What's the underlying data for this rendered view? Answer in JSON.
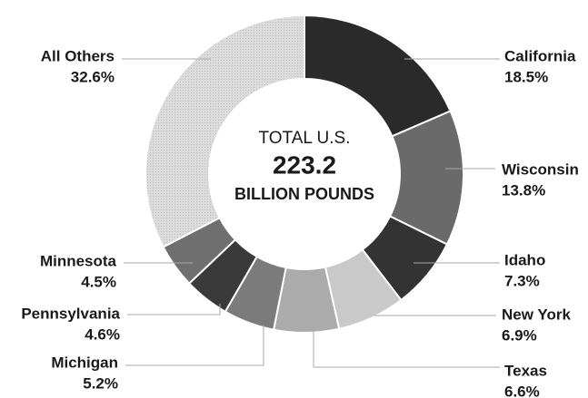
{
  "chart_data": {
    "type": "pie",
    "donut": true,
    "categories": [
      "California",
      "Wisconsin",
      "Idaho",
      "New York",
      "Texas",
      "Michigan",
      "Pennsylvania",
      "Minnesota",
      "All Others"
    ],
    "values": [
      18.5,
      13.8,
      7.3,
      6.9,
      6.6,
      5.2,
      4.6,
      4.5,
      32.6
    ],
    "value_labels": [
      "18.5%",
      "13.8%",
      "7.3%",
      "6.9%",
      "6.6%",
      "5.2%",
      "4.6%",
      "4.5%",
      "32.6%"
    ],
    "colors": [
      "#2a2a2a",
      "#6a6a6a",
      "#333333",
      "#c9c9c9",
      "#ababab",
      "#7b7b7b",
      "#3a3a3a",
      "#6f6f6f",
      "#dcdcdc"
    ],
    "annotations": [
      "TOTAL U.S.",
      "223.2",
      "BILLION POUNDS"
    ]
  }
}
